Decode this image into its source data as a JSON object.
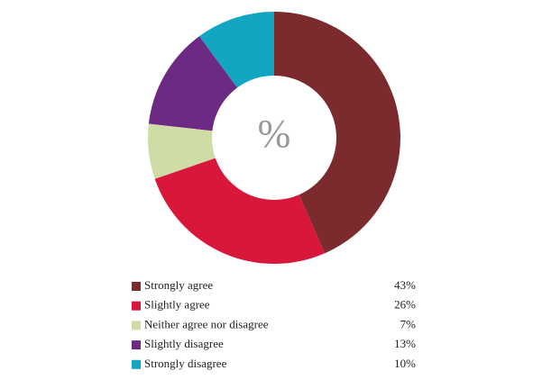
{
  "chart_data": {
    "type": "donut",
    "center_label": "%",
    "categories": [
      "Strongly agree",
      "Slightly agree",
      "Neither agree nor disagree",
      "Slightly disagree",
      "Strongly disagree"
    ],
    "values": [
      43,
      26,
      7,
      13,
      10
    ],
    "value_labels": [
      "43%",
      "26%",
      "7%",
      "13%",
      "10%"
    ],
    "colors": [
      "#7b2a2e",
      "#d9173a",
      "#cfdca6",
      "#6d2a85",
      "#12a6c2"
    ]
  }
}
